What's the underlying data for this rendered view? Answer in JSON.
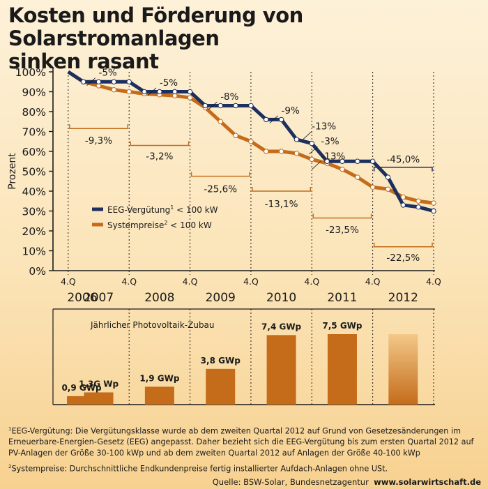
{
  "title_line1": "Kosten und Förderung von Solarstromanlagen",
  "title_line2": "sinken rasant",
  "chart_data": [
    {
      "type": "line",
      "ylabel": "Prozent",
      "ylim": [
        0,
        100
      ],
      "yticks": [
        "0%",
        "10%",
        "20%",
        "30%",
        "40%",
        "50%",
        "60%",
        "70%",
        "80%",
        "90%",
        "100%"
      ],
      "quarter_label": "4.Q",
      "years": [
        "2006",
        "2007",
        "2008",
        "2009",
        "2010",
        "2011",
        "2012"
      ],
      "legend": {
        "eeg_label": "EEG-Vergütung",
        "eeg_sup": "1",
        "eeg_suffix": " < 100 kW",
        "sys_label": "Systempreise",
        "sys_sup": "2",
        "sys_suffix": " < 100 kW"
      },
      "series": [
        {
          "name": "EEG-Vergütung",
          "color": "#1c2f5e",
          "x": [
            2006.75,
            2007.0,
            2007.25,
            2007.5,
            2007.75,
            2008.0,
            2008.25,
            2008.5,
            2008.75,
            2009.0,
            2009.25,
            2009.5,
            2009.75,
            2010.0,
            2010.25,
            2010.5,
            2010.75,
            2011.0,
            2011.25,
            2011.5,
            2011.75,
            2012.0,
            2012.25,
            2012.5,
            2012.75
          ],
          "values": [
            100,
            95,
            95,
            95,
            95,
            90,
            90,
            90,
            90,
            83,
            83,
            83,
            83,
            76,
            76,
            66,
            64,
            55,
            55,
            55,
            55,
            47,
            33,
            32,
            30
          ]
        },
        {
          "name": "Systempreise",
          "color": "#c46c1a",
          "x": [
            2006.75,
            2007.0,
            2007.25,
            2007.5,
            2007.75,
            2008.0,
            2008.25,
            2008.5,
            2008.75,
            2009.0,
            2009.25,
            2009.5,
            2009.75,
            2010.0,
            2010.25,
            2010.5,
            2010.75,
            2011.0,
            2011.25,
            2011.5,
            2011.75,
            2012.0,
            2012.25,
            2012.5,
            2012.75
          ],
          "values": [
            100,
            95,
            93,
            91,
            90,
            89,
            88.5,
            88,
            87,
            82,
            75,
            68,
            65,
            60,
            60,
            59,
            56,
            54,
            51,
            47,
            42,
            41,
            37,
            35,
            34
          ]
        }
      ],
      "eeg_step_labels": [
        {
          "text": "-5%",
          "x": 2007.4,
          "y": 98
        },
        {
          "text": "-5%",
          "x": 2008.4,
          "y": 93
        },
        {
          "text": "-8%",
          "x": 2009.4,
          "y": 86
        },
        {
          "text": "-9%",
          "x": 2010.4,
          "y": 79
        },
        {
          "text": "-13%",
          "x": 2010.95,
          "y": 71
        },
        {
          "text": "-3%",
          "x": 2011.05,
          "y": 63.5
        },
        {
          "text": "-13%",
          "x": 2011.1,
          "y": 56
        }
      ],
      "annual_changes": [
        {
          "text": "-9,3%",
          "x_from": 2007.0,
          "x_to": 2008.0,
          "bracket_y": 71.5,
          "label_y": 66,
          "color": "#c46c1a"
        },
        {
          "text": "-3,2%",
          "x_from": 2008.0,
          "x_to": 2009.0,
          "bracket_y": 63,
          "label_y": 58,
          "color": "#c46c1a"
        },
        {
          "text": "-25,6%",
          "x_from": 2009.0,
          "x_to": 2010.0,
          "bracket_y": 47.5,
          "label_y": 41.5,
          "color": "#c46c1a"
        },
        {
          "text": "-13,1%",
          "x_from": 2010.0,
          "x_to": 2011.0,
          "bracket_y": 40,
          "label_y": 34,
          "color": "#c46c1a"
        },
        {
          "text": "-23,5%",
          "x_from": 2011.0,
          "x_to": 2012.0,
          "bracket_y": 26.5,
          "label_y": 21,
          "color": "#c46c1a"
        },
        {
          "text": "-22,5%",
          "x_from": 2012.0,
          "x_to": 2013.0,
          "bracket_y": 12,
          "label_y": 7,
          "color": "#c46c1a"
        },
        {
          "text": "-45,0%",
          "x_from": 2012.0,
          "x_to": 2013.0,
          "bracket_y": 52,
          "label_y": 56.5,
          "color": "#1c2f5e"
        }
      ]
    },
    {
      "type": "bar",
      "title": "Jährlicher Photovoltaik-Zubau",
      "categories": [
        "2006",
        "2007",
        "2008",
        "2009",
        "2010",
        "2011",
        "2012"
      ],
      "values": [
        0.9,
        1.3,
        1.9,
        3.8,
        7.4,
        7.5,
        7.5
      ],
      "labels": [
        "0,9 GWp",
        "1,3G Wp",
        "1,9 GWp",
        "3,8 GWp",
        "7,4 GWp",
        "7,5 GWp",
        ""
      ],
      "color": "#c46c1a",
      "highlight_last": true
    }
  ],
  "footnotes": {
    "fn1_sup": "1",
    "fn1_text": "EEG-Vergütung: Die Vergütungsklasse wurde ab dem zweiten Quartal 2012 auf Grund von Gesetzesänderungen im Erneuerbare-Energien-Gesetz (EEG) angepasst. Daher bezieht sich die EEG-Vergütung bis zum ersten Quartal 2012 auf PV-Anlagen der Größe 30-100 kWp und ab dem zweiten Quartal 2012 auf Anlagen der Größe 40-100 kWp",
    "fn2_sup": "2",
    "fn2_text": "Systempreise: Durchschnittliche Endkundenpreise fertig installierter Aufdach-Anlagen ohne USt."
  },
  "source": {
    "text": "Quelle: BSW-Solar, Bundesnetzagentur",
    "url": "www.solarwirtschaft.de"
  }
}
